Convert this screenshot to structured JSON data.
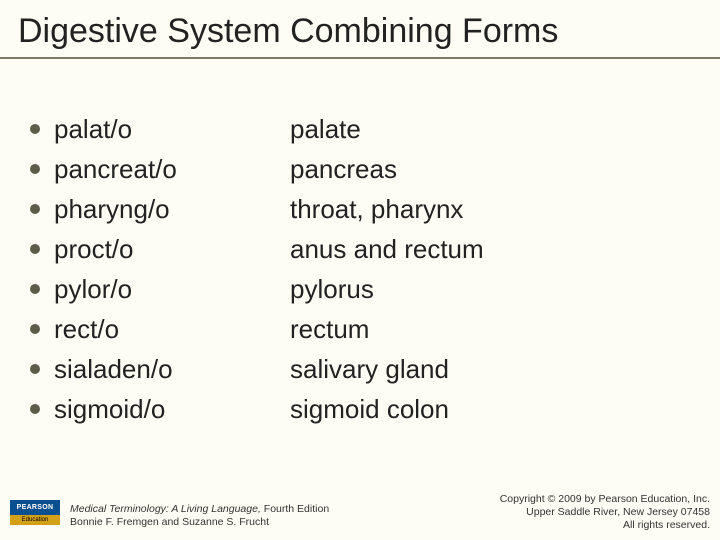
{
  "title": "Digestive System Combining Forms",
  "rows": [
    {
      "term": "palat/o",
      "meaning": "palate"
    },
    {
      "term": "pancreat/o",
      "meaning": "pancreas"
    },
    {
      "term": "pharyng/o",
      "meaning": "throat, pharynx"
    },
    {
      "term": "proct/o",
      "meaning": "anus and rectum"
    },
    {
      "term": "pylor/o",
      "meaning": "pylorus"
    },
    {
      "term": "rect/o",
      "meaning": "rectum"
    },
    {
      "term": "sialaden/o",
      "meaning": "salivary gland"
    },
    {
      "term": "sigmoid/o",
      "meaning": "sigmoid colon"
    }
  ],
  "logo": {
    "top": "PEARSON",
    "bottom": "Education"
  },
  "citation": {
    "book": "Medical Terminology: A Living Language,",
    "edition": " Fourth Edition",
    "authors": "Bonnie F. Fremgen and Suzanne S. Frucht"
  },
  "copyright": {
    "line1": "Copyright © 2009 by Pearson Education, Inc.",
    "line2": "Upper Saddle River, New Jersey 07458",
    "line3": "All rights reserved."
  },
  "colors": {
    "background": "#fdfdf5",
    "bullet": "#5d5d4a",
    "rule": "#7a7a66",
    "text": "#222222"
  },
  "typography": {
    "title_fontsize": 34,
    "body_fontsize": 26,
    "footer_fontsize": 10.5
  }
}
